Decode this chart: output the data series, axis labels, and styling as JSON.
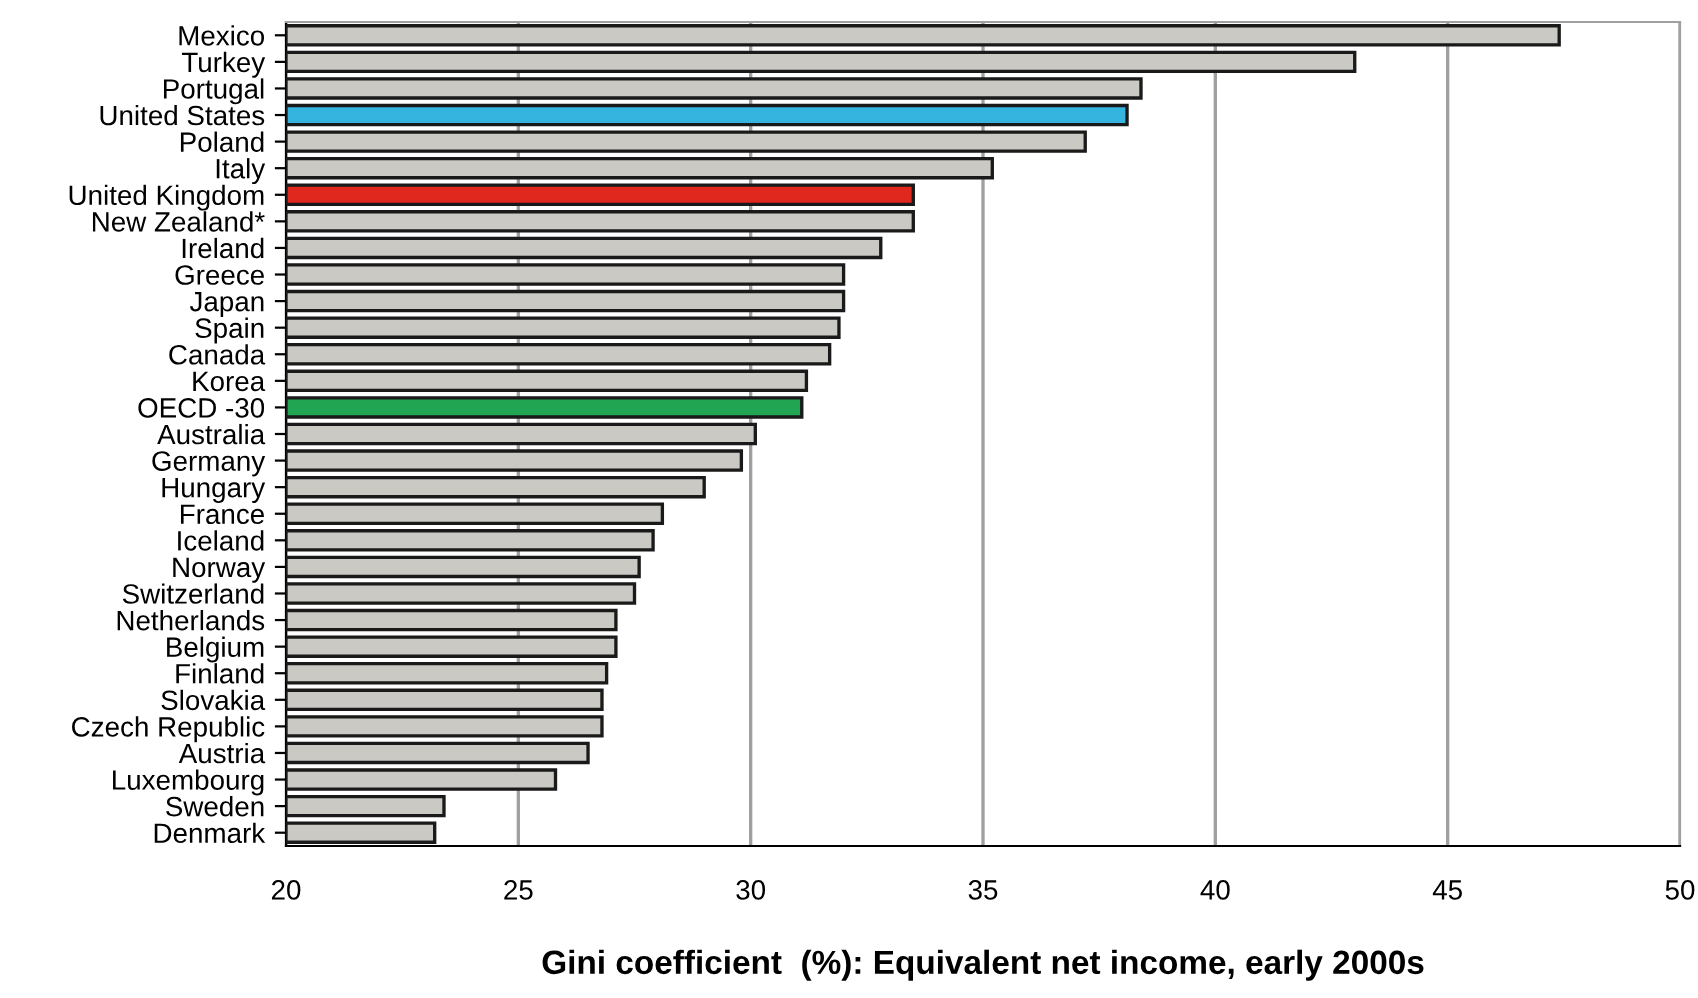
{
  "chart_data": {
    "type": "bar",
    "orientation": "horizontal",
    "xlabel": "Gini coefficient  (%): Equivalent net income, early 2000s",
    "categories": [
      "Mexico",
      "Turkey",
      "Portugal",
      "United States",
      "Poland",
      "Italy",
      "United Kingdom",
      "New Zealand*",
      "Ireland",
      "Greece",
      "Japan",
      "Spain",
      "Canada",
      "Korea",
      "OECD -30",
      "Australia",
      "Germany",
      "Hungary",
      "France",
      "Iceland",
      "Norway",
      "Switzerland",
      "Netherlands",
      "Belgium",
      "Finland",
      "Slovakia",
      "Czech Republic",
      "Austria",
      "Luxembourg",
      "Sweden",
      "Denmark"
    ],
    "values": [
      47.4,
      43.0,
      38.4,
      38.1,
      37.2,
      35.2,
      33.5,
      33.5,
      32.8,
      32.0,
      32.0,
      31.9,
      31.7,
      31.2,
      31.1,
      30.1,
      29.8,
      29.0,
      28.1,
      27.9,
      27.6,
      27.5,
      27.1,
      27.1,
      26.9,
      26.8,
      26.8,
      26.5,
      25.8,
      23.4,
      23.2
    ],
    "colors": [
      "#cac9c4",
      "#cac9c4",
      "#cac9c4",
      "#35b4e0",
      "#cac9c4",
      "#cac9c4",
      "#e0281e",
      "#cac9c4",
      "#cac9c4",
      "#cac9c4",
      "#cac9c4",
      "#cac9c4",
      "#cac9c4",
      "#cac9c4",
      "#22a552",
      "#cac9c4",
      "#cac9c4",
      "#cac9c4",
      "#cac9c4",
      "#cac9c4",
      "#cac9c4",
      "#cac9c4",
      "#cac9c4",
      "#cac9c4",
      "#cac9c4",
      "#cac9c4",
      "#cac9c4",
      "#cac9c4",
      "#cac9c4",
      "#cac9c4",
      "#cac9c4"
    ],
    "xlim": [
      20,
      50
    ],
    "xticks": [
      20,
      25,
      30,
      35,
      40,
      45,
      50
    ],
    "grid": "x"
  }
}
